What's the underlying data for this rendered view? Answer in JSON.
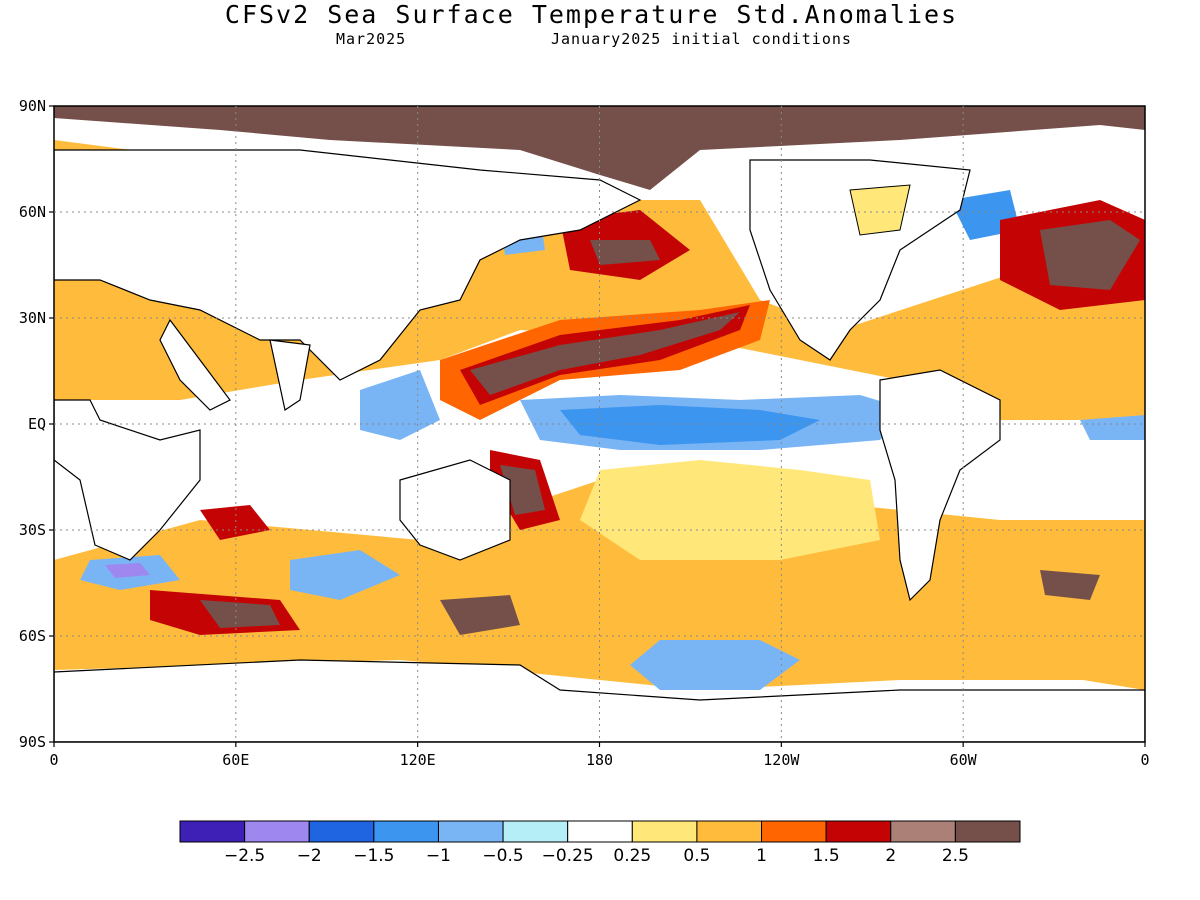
{
  "title": "CFSv2 Sea Surface Temperature Std.Anomalies",
  "subtitle_left": "Mar2025",
  "subtitle_right": "January2025 initial conditions",
  "map": {
    "lat_labels": [
      "90N",
      "60N",
      "30N",
      "EQ",
      "30S",
      "60S",
      "90S"
    ],
    "lat_values": [
      90,
      60,
      30,
      0,
      -30,
      -60,
      -90
    ],
    "lon_labels": [
      "0",
      "60E",
      "120E",
      "180",
      "120W",
      "60W",
      "0"
    ],
    "lon_values": [
      0,
      60,
      120,
      180,
      240,
      300,
      360
    ]
  },
  "colorbar": {
    "colors": [
      "#3f20b6",
      "#9e88f0",
      "#1f64e0",
      "#3c95ef",
      "#79b5f4",
      "#b6eef8",
      "#ffffff",
      "#ffe77a",
      "#ffbc3c",
      "#ff6500",
      "#c40404",
      "#ab8076",
      "#75504a"
    ],
    "labels": [
      "−2.5",
      "−2",
      "−1.5",
      "−1",
      "−0.5",
      "−0.25",
      "0.25",
      "0.5",
      "1",
      "1.5",
      "2",
      "2.5"
    ]
  }
}
